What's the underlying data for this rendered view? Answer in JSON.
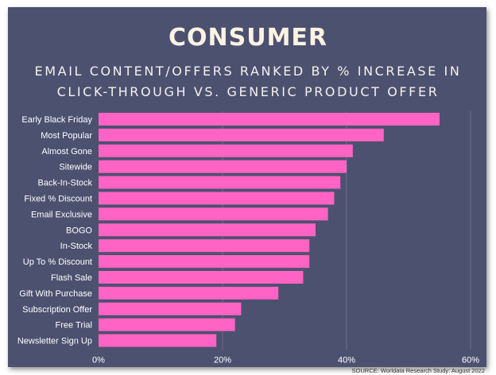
{
  "chart_data": {
    "type": "bar",
    "orientation": "horizontal",
    "title": "CONSUMER",
    "subtitle_lines": [
      "EMAIL CONTENT/OFFERS RANKED BY % INCREASE IN",
      "CLICK-THROUGH VS. GENERIC PRODUCT OFFER"
    ],
    "categories": [
      "Early Black Friday",
      "Most Popular",
      "Almost Gone",
      "Sitewide",
      "Back-In-Stock",
      "Fixed % Discount",
      "Email Exclusive",
      "BOGO",
      "In-Stock",
      "Up To % Discount",
      "Flash Sale",
      "Gift With Purchase",
      "Subscription Offer",
      "Free Trial",
      "Newsletter Sign Up"
    ],
    "values": [
      55,
      46,
      41,
      40,
      39,
      38,
      37,
      35,
      34,
      34,
      33,
      29,
      23,
      22,
      19
    ],
    "xlim": [
      0,
      60
    ],
    "xticks": [
      0,
      20,
      40,
      60
    ],
    "xtick_labels": [
      "0%",
      "20%",
      "40%",
      "60%"
    ],
    "xlabel": "",
    "ylabel": "",
    "grid": true,
    "source": "SOURCE: Worldata Research Study: August 2022",
    "colors": {
      "bar": "#ff63c3",
      "background": "#4d5170",
      "text": "#ffffff"
    }
  }
}
